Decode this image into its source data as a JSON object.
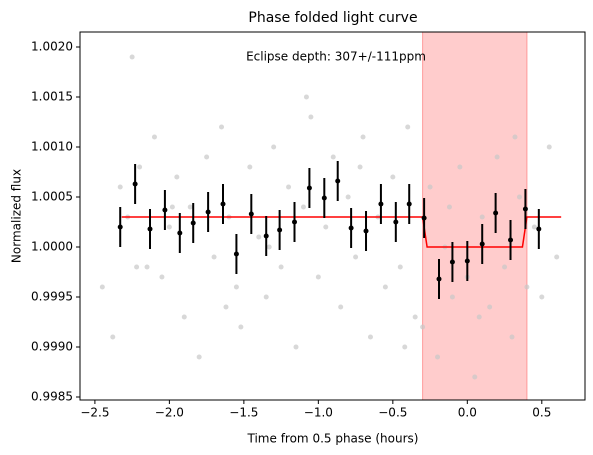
{
  "chart_data": {
    "type": "scatter",
    "title": "Phase folded light curve",
    "xlabel": "Time from 0.5 phase (hours)",
    "ylabel": "Normalized flux",
    "annotation": "Eclipse depth: 307+/-111ppm",
    "xlim": [
      -2.6,
      0.79
    ],
    "ylim": [
      0.99847,
      1.00215
    ],
    "xticks": [
      {
        "value": -2.5,
        "label": "−2.5"
      },
      {
        "value": -2.0,
        "label": "−2.0"
      },
      {
        "value": -1.5,
        "label": "−1.5"
      },
      {
        "value": -1.0,
        "label": "−1.0"
      },
      {
        "value": -0.5,
        "label": "−0.5"
      },
      {
        "value": 0.0,
        "label": "0.0"
      },
      0.5
    ],
    "yticks": [
      {
        "value": 0.9985,
        "label": "0.9985"
      },
      {
        "value": 0.999,
        "label": "0.9990"
      },
      {
        "value": 0.9995,
        "label": "0.9995"
      },
      {
        "value": 1.0,
        "label": "1.0000"
      },
      {
        "value": 1.0005,
        "label": "1.0005"
      },
      {
        "value": 1.001,
        "label": "1.0010"
      },
      {
        "value": 1.0015,
        "label": "1.0015"
      },
      {
        "value": 1.002,
        "label": "1.0020"
      }
    ],
    "shade": {
      "x": [
        -0.3,
        0.4
      ],
      "color": "#ff9999"
    },
    "points": {
      "color": "#c8c8c8",
      "x": [
        -2.45,
        -2.38,
        -2.33,
        -2.28,
        -2.25,
        -2.2,
        -2.15,
        -2.1,
        -2.05,
        -2.0,
        -1.95,
        -1.9,
        -1.86,
        -1.8,
        -1.75,
        -1.7,
        -1.65,
        -1.6,
        -1.55,
        -1.52,
        -1.46,
        -1.4,
        -1.35,
        -1.3,
        -1.25,
        -1.2,
        -1.15,
        -1.1,
        -1.05,
        -1.0,
        -0.95,
        -0.9,
        -0.85,
        -0.8,
        -0.75,
        -0.7,
        -0.65,
        -0.6,
        -0.55,
        -0.5,
        -0.45,
        -0.4,
        -0.35,
        -0.3,
        -0.25,
        -0.2,
        -0.15,
        -0.1,
        -0.05,
        0.0,
        0.05,
        0.1,
        0.15,
        0.2,
        0.25,
        0.3,
        0.35,
        0.4,
        0.45,
        0.5,
        0.55,
        0.6,
        -2.22,
        -1.98,
        -1.62,
        -1.33,
        -1.08,
        -0.72,
        -0.42,
        -0.12,
        0.08,
        0.32
      ],
      "y": [
        0.9996,
        0.9991,
        1.0006,
        1.0003,
        1.0019,
        1.0008,
        0.9998,
        1.0011,
        0.9997,
        1.0002,
        1.0007,
        0.9993,
        1.0004,
        0.9989,
        1.0009,
        0.9999,
        1.0012,
        1.0003,
        0.9996,
        0.9992,
        1.0008,
        1.0001,
        0.9995,
        1.001,
        0.9998,
        1.0006,
        0.999,
        1.0004,
        1.0013,
        0.9997,
        1.0002,
        1.0009,
        0.9994,
        1.0005,
        0.9999,
        1.0011,
        0.9991,
        1.0003,
        0.9996,
        1.0007,
        0.9998,
        1.0012,
        0.9993,
        0.9992,
        1.0006,
        0.9989,
        1.0,
        0.9995,
        1.0008,
        0.9997,
        0.9987,
        1.0003,
        0.9994,
        1.0009,
        0.9998,
        0.9991,
        1.0005,
        0.9996,
        1.0002,
        0.9995,
        1.001,
        0.9999,
        0.9998,
        1.0004,
        0.9994,
        1.0,
        1.0015,
        1.0008,
        0.999,
        1.0004,
        0.9993,
        1.0011
      ]
    },
    "binned": {
      "color": "#000000",
      "x": [
        -2.33,
        -2.23,
        -2.13,
        -2.03,
        -1.93,
        -1.84,
        -1.74,
        -1.64,
        -1.55,
        -1.45,
        -1.35,
        -1.26,
        -1.16,
        -1.06,
        -0.96,
        -0.87,
        -0.78,
        -0.68,
        -0.58,
        -0.48,
        -0.39,
        -0.29,
        -0.19,
        -0.1,
        0.0,
        0.1,
        0.19,
        0.29,
        0.39,
        0.48
      ],
      "y": [
        1.0002,
        1.00063,
        1.00018,
        1.00037,
        1.00014,
        1.00024,
        1.00035,
        1.00043,
        0.99993,
        1.00033,
        1.00011,
        1.00017,
        1.00025,
        1.00059,
        1.00049,
        1.00066,
        1.00019,
        1.00016,
        1.00043,
        1.00025,
        1.00043,
        1.00029,
        0.99968,
        0.99985,
        0.99986,
        1.00003,
        1.00034,
        1.00007,
        1.00038,
        1.00018
      ],
      "yerr": [
        0.0002,
        0.0002,
        0.0002,
        0.0002,
        0.0002,
        0.0002,
        0.0002,
        0.0002,
        0.0002,
        0.0002,
        0.0002,
        0.0002,
        0.0002,
        0.0002,
        0.0002,
        0.0002,
        0.0002,
        0.0002,
        0.0002,
        0.0002,
        0.0002,
        0.0002,
        0.0002,
        0.0002,
        0.0002,
        0.0002,
        0.0002,
        0.0002,
        0.0002,
        0.0002
      ]
    },
    "model": {
      "color": "#ff0000",
      "x": [
        -2.32,
        -0.3,
        -0.27,
        0.37,
        0.4,
        0.63
      ],
      "y": [
        1.0003,
        1.0003,
        1.0,
        1.0,
        1.0003,
        1.0003
      ]
    }
  }
}
